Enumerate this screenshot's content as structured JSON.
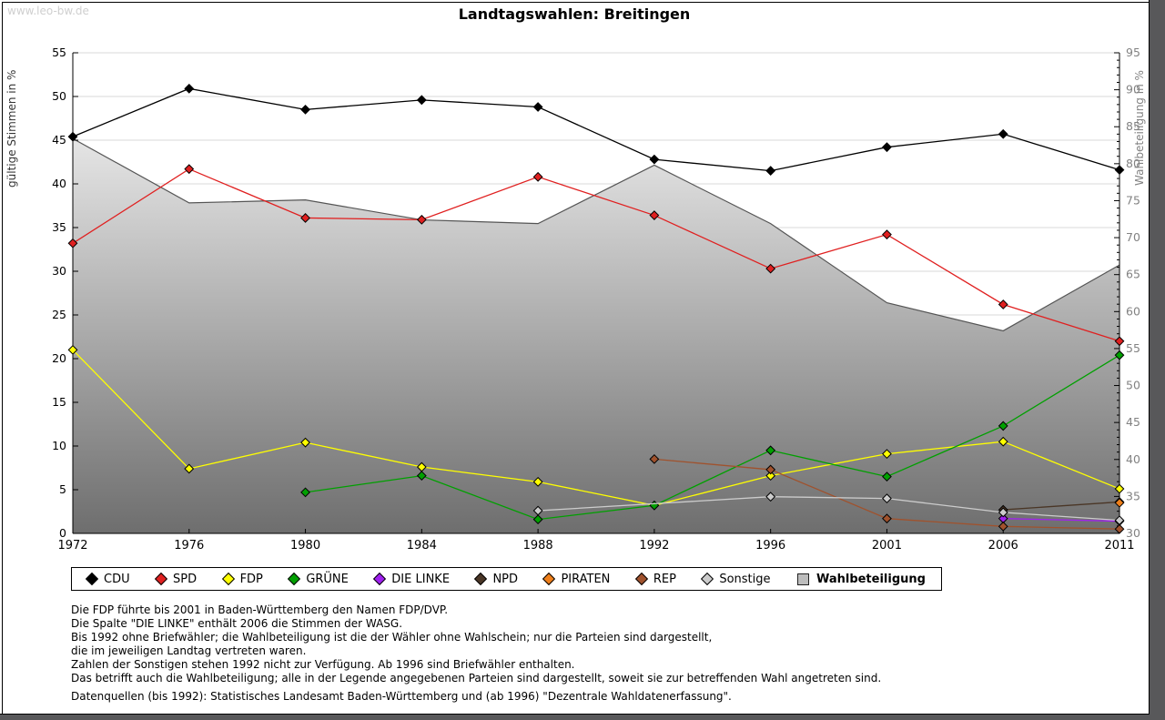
{
  "page": {
    "watermark": "www.leo-bw.de",
    "title": "Landtagswahlen: Breitingen"
  },
  "chart_data": {
    "type": "line",
    "title": "Landtagswahlen: Breitingen",
    "x_categories": [
      "1972",
      "1976",
      "1980",
      "1984",
      "1988",
      "1992",
      "1996",
      "2001",
      "2006",
      "2011"
    ],
    "y_left": {
      "label": "gültige Stimmen in %",
      "min": 0,
      "max": 55,
      "tick_step": 5,
      "ticks": [
        0,
        5,
        10,
        15,
        20,
        25,
        30,
        35,
        40,
        45,
        50,
        55
      ]
    },
    "y_right": {
      "label": "Wahlbeteiligung in %",
      "min": 30,
      "max": 95,
      "tick_step": 5,
      "ticks": [
        30,
        35,
        40,
        45,
        50,
        55,
        60,
        65,
        70,
        75,
        80,
        85,
        90,
        95
      ]
    },
    "grid": "horizontal",
    "legend_position": "bottom",
    "series": [
      {
        "key": "wahlbeteiligung",
        "name": "Wahlbeteiligung",
        "axis": "right",
        "type": "area",
        "color": "#9a9a9a",
        "fill_top": "#ffffff",
        "fill_bottom": "#6e6e6e",
        "edge": "#555555",
        "values": [
          83.4,
          74.7,
          75.1,
          72.4,
          71.9,
          79.8,
          71.9,
          61.2,
          57.4,
          66.3
        ]
      },
      {
        "key": "cdu",
        "name": "CDU",
        "axis": "left",
        "type": "line",
        "color": "#000000",
        "values": [
          45.4,
          50.9,
          48.5,
          49.6,
          48.8,
          42.8,
          41.5,
          44.2,
          45.7,
          41.6
        ]
      },
      {
        "key": "spd",
        "name": "SPD",
        "axis": "left",
        "type": "line",
        "color": "#e02020",
        "values": [
          33.2,
          41.7,
          36.1,
          35.9,
          40.8,
          36.4,
          30.3,
          34.2,
          26.2,
          22.0
        ]
      },
      {
        "key": "fdp",
        "name": "FDP",
        "axis": "left",
        "type": "line",
        "color": "#ffff00",
        "values": [
          21.0,
          7.4,
          10.4,
          7.6,
          5.9,
          3.2,
          6.6,
          9.1,
          10.5,
          5.1
        ]
      },
      {
        "key": "gruene",
        "name": "GRÜNE",
        "axis": "left",
        "type": "line",
        "color": "#00a000",
        "values": [
          null,
          null,
          4.7,
          6.6,
          1.6,
          3.2,
          9.5,
          6.5,
          12.3,
          20.4
        ]
      },
      {
        "key": "die-linke",
        "name": "DIE LINKE",
        "axis": "left",
        "type": "line",
        "color": "#a020f0",
        "values": [
          null,
          null,
          null,
          null,
          null,
          null,
          null,
          null,
          1.7,
          1.4
        ]
      },
      {
        "key": "npd",
        "name": "NPD",
        "axis": "left",
        "type": "line",
        "color": "#4a3626",
        "values": [
          null,
          null,
          null,
          null,
          null,
          null,
          null,
          null,
          2.7,
          3.6
        ]
      },
      {
        "key": "piraten",
        "name": "PIRATEN",
        "axis": "left",
        "type": "line",
        "color": "#ef7f1a",
        "values": [
          null,
          null,
          null,
          null,
          null,
          null,
          null,
          null,
          null,
          3.5
        ]
      },
      {
        "key": "rep",
        "name": "REP",
        "axis": "left",
        "type": "line",
        "color": "#a0522d",
        "values": [
          null,
          null,
          null,
          null,
          null,
          8.5,
          7.3,
          1.7,
          0.8,
          0.5
        ]
      },
      {
        "key": "sonstige",
        "name": "Sonstige",
        "axis": "left",
        "type": "line",
        "color": "#cccccc",
        "values": [
          null,
          null,
          null,
          null,
          2.6,
          null,
          4.2,
          4.0,
          2.4,
          1.5
        ]
      }
    ],
    "legend_order": [
      "cdu",
      "spd",
      "fdp",
      "gruene",
      "die-linke",
      "npd",
      "piraten",
      "rep",
      "sonstige",
      "wahlbeteiligung"
    ]
  },
  "footnotes": {
    "lines": [
      "Die FDP führte bis 2001 in Baden-Württemberg den Namen FDP/DVP.",
      "Die Spalte \"DIE LINKE\" enthält 2006 die Stimmen der WASG.",
      "Bis 1992 ohne Briefwähler; die Wahlbeteiligung ist die der Wähler ohne Wahlschein; nur die Parteien sind dargestellt,",
      "die im jeweiligen Landtag vertreten waren.",
      "Zahlen der Sonstigen stehen 1992 nicht zur Verfügung. Ab 1996 sind Briefwähler enthalten.",
      "Das betrifft auch die Wahlbeteiligung; alle in der Legende angegebenen Parteien sind dargestellt, soweit sie zur betreffenden Wahl angetreten sind.",
      "",
      "Datenquellen (bis 1992): Statistisches Landesamt Baden-Württemberg und (ab 1996) \"Dezentrale Wahldatenerfassung\"."
    ]
  }
}
